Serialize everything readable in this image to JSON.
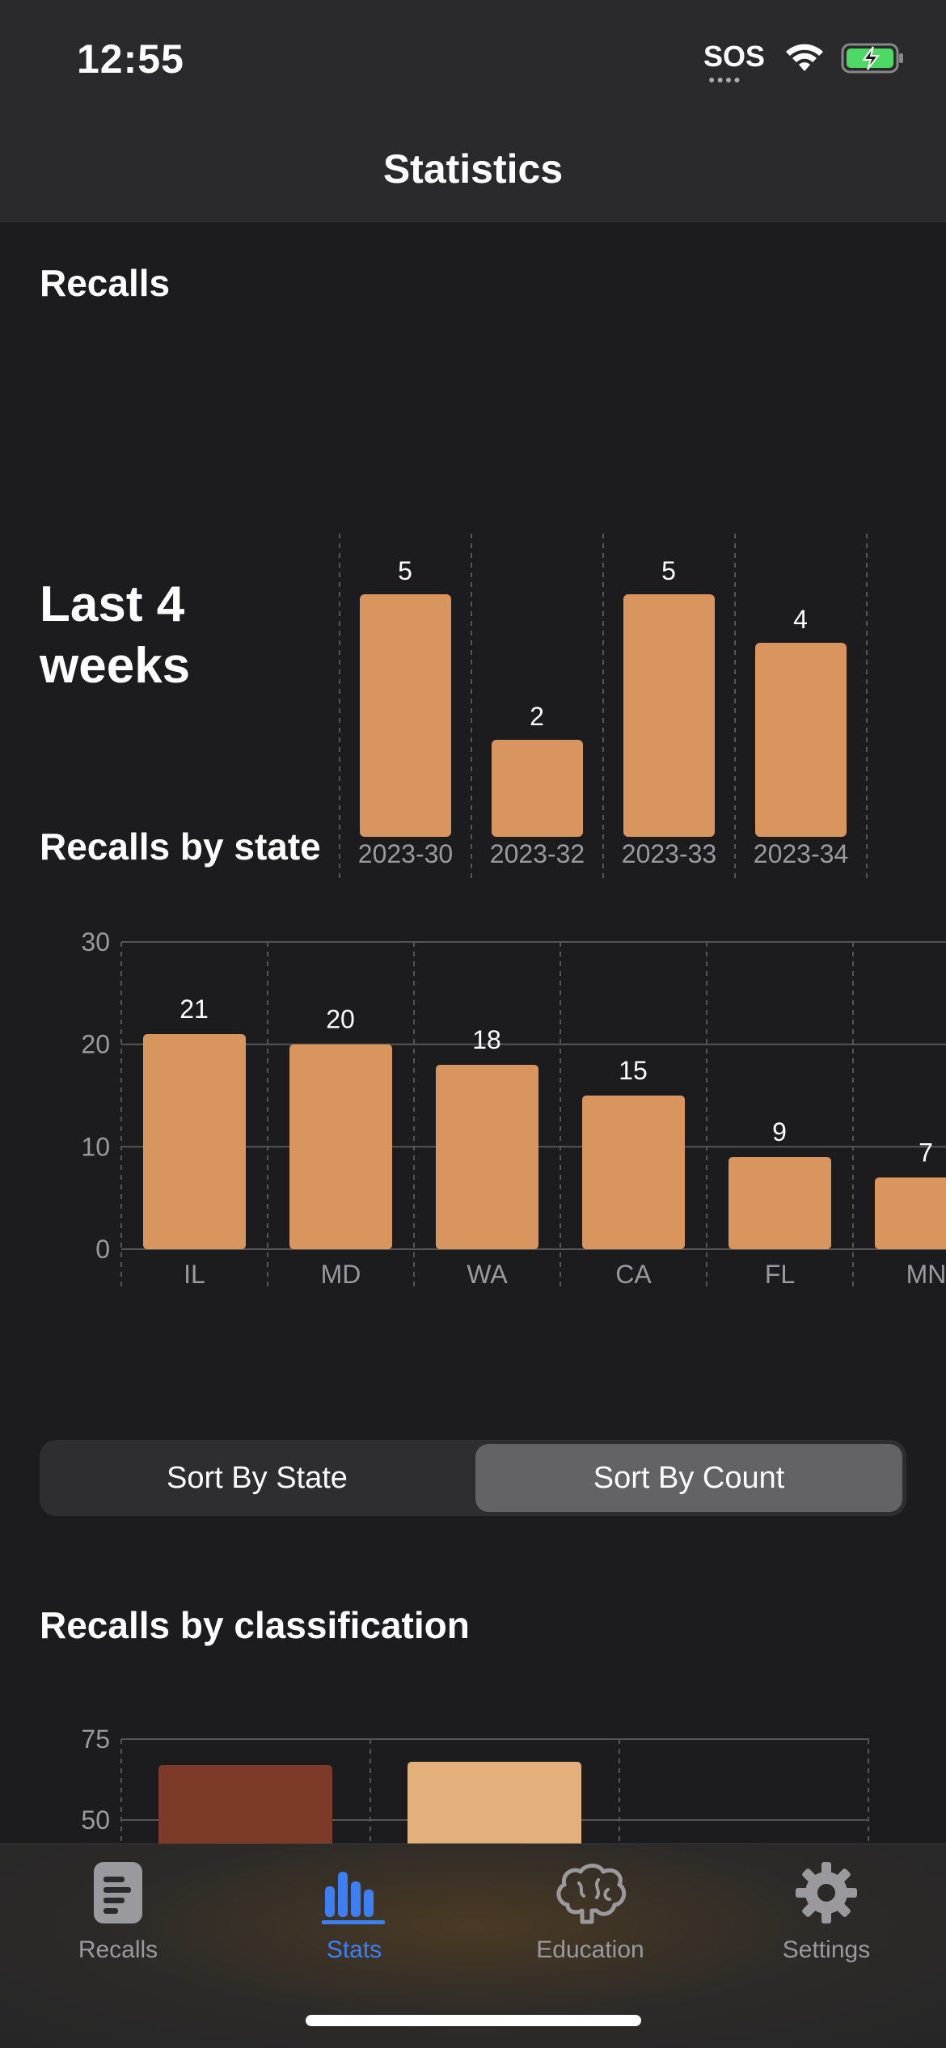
{
  "status": {
    "time": "12:55",
    "sos": "SOS"
  },
  "nav": {
    "title": "Statistics"
  },
  "sections": {
    "recalls": "Recalls",
    "period_label": "Last 4 weeks",
    "by_state": "Recalls by state",
    "by_classification": "Recalls by classification"
  },
  "segmented": {
    "left": "Sort By State",
    "right": "Sort By Count",
    "selected": "Sort By Count"
  },
  "tabs": [
    {
      "label": "Recalls",
      "icon": "document-list-icon"
    },
    {
      "label": "Stats",
      "icon": "bar-chart-icon"
    },
    {
      "label": "Education",
      "icon": "brain-icon"
    },
    {
      "label": "Settings",
      "icon": "gear-icon"
    }
  ],
  "colors": {
    "bar": "#d9955e",
    "accent": "#3d7ff5",
    "class1": "#7d3a28",
    "class2": "#e3b07c"
  },
  "chart_data": [
    {
      "type": "bar",
      "title": "Recalls",
      "categories": [
        "2023-30",
        "2023-32",
        "2023-33",
        "2023-34"
      ],
      "values": [
        5,
        2,
        5,
        4
      ],
      "ylim": [
        0,
        5
      ],
      "grid": "vertical dashed"
    },
    {
      "type": "bar",
      "title": "Recalls by state",
      "categories": [
        "IL",
        "MD",
        "WA",
        "CA",
        "FL",
        "MN"
      ],
      "values": [
        21,
        20,
        18,
        15,
        9,
        7
      ],
      "yticks": [
        "0",
        "10",
        "20",
        "30"
      ],
      "ylim": [
        0,
        30
      ],
      "grid": "horizontal solid, vertical dashed"
    },
    {
      "type": "bar",
      "title": "Recalls by classification",
      "series": [
        {
          "values": [
            67
          ],
          "color": "#7d3a28"
        },
        {
          "values": [
            68
          ],
          "color": "#e3b07c"
        }
      ],
      "yticks": [
        "50",
        "75"
      ],
      "ylim": [
        0,
        75
      ]
    }
  ]
}
